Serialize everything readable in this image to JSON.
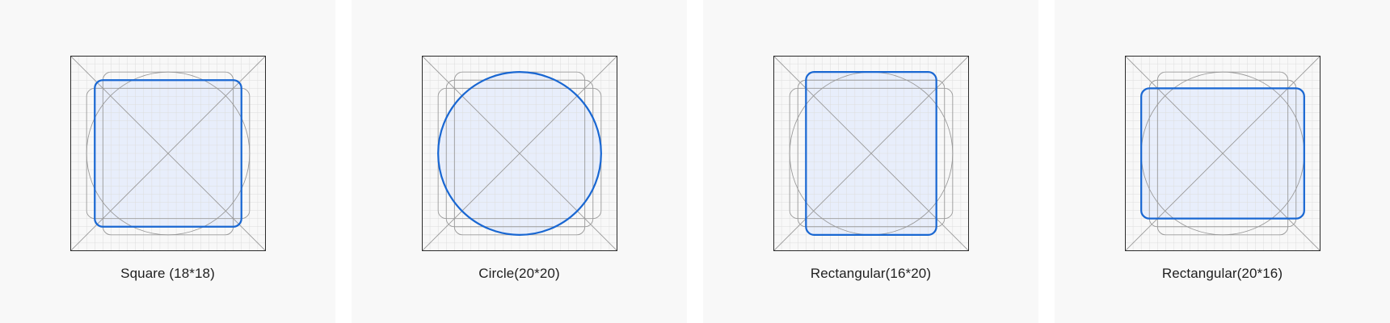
{
  "colors": {
    "accent": "#1967d2",
    "fill": "#e8eefb",
    "keyline": "#9a9a9a",
    "grid": "#dddddd",
    "frame": "#2b2b2b",
    "card": "#f8f8f8"
  },
  "icon_keylines": [
    {
      "caption": "Square (18*18)",
      "highlight": "square"
    },
    {
      "caption": "Circle(20*20)",
      "highlight": "circle"
    },
    {
      "caption": "Rectangular(16*20)",
      "highlight": "rect-portrait"
    },
    {
      "caption": "Rectangular(20*16)",
      "highlight": "rect-landscape"
    }
  ]
}
